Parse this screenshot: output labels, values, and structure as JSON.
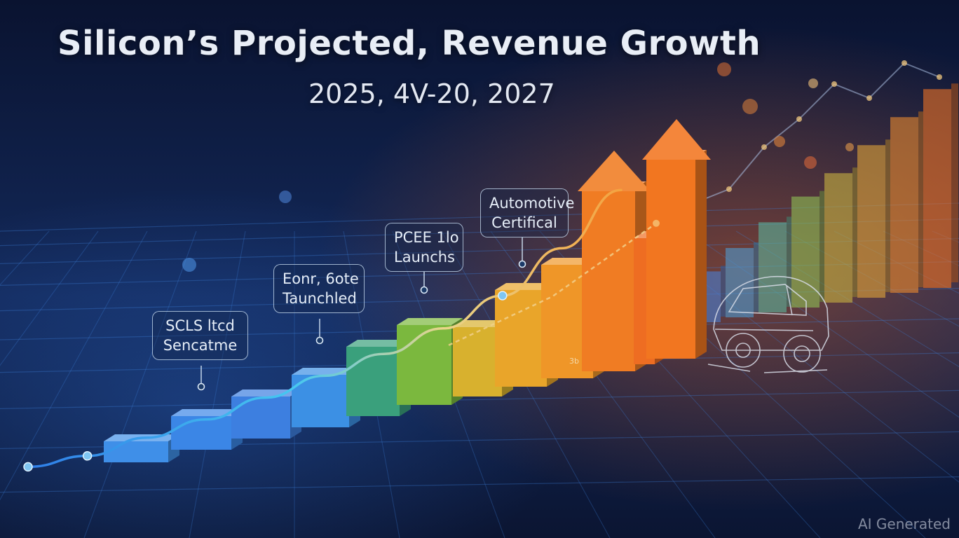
{
  "title": "Silicon’s Projected, Revenue Growth",
  "subtitle": "2025, 4V-20, 2027",
  "watermark": "AI Generated",
  "small_bar_label": "3b",
  "callouts": [
    {
      "line1": "SCLS ltcd",
      "line2": "Sencatme"
    },
    {
      "line1": "Eonr, 6ote",
      "line2": "Taunchled"
    },
    {
      "line1": "PCEE 1lo",
      "line2": "Launchs"
    },
    {
      "line1": "Automotive",
      "line2": "Certifical"
    }
  ],
  "icons": [
    "car-outline-icon",
    "growth-arrow-icon"
  ],
  "chart_data": {
    "type": "bar",
    "title": "Silicon’s Projected, Revenue Growth",
    "subtitle": "2025, 4V-20, 2027",
    "xlabel": "",
    "ylabel": "",
    "grid": true,
    "values": [
      1,
      1.6,
      2,
      2.5,
      3.3,
      3.8,
      3.3,
      4.6,
      5.4,
      8.7,
      6,
      9.6
    ],
    "trend": [
      0.3,
      0.6,
      1.1,
      1.6,
      2.2,
      2.8,
      3.4,
      4.1,
      5.0,
      6.3,
      7.9
    ],
    "secondary_trend": [
      3.4,
      3.8,
      4.2,
      4.6,
      5.2,
      5.8,
      6.4
    ],
    "colors": [
      "#3f8fe8",
      "#3b86e6",
      "#3d7fe0",
      "#3c90e4",
      "#3aa07c",
      "#7bb83e",
      "#d8b12e",
      "#e9a52a",
      "#ef9628",
      "#f07c23",
      "#ee6d22",
      "#f27620"
    ]
  }
}
